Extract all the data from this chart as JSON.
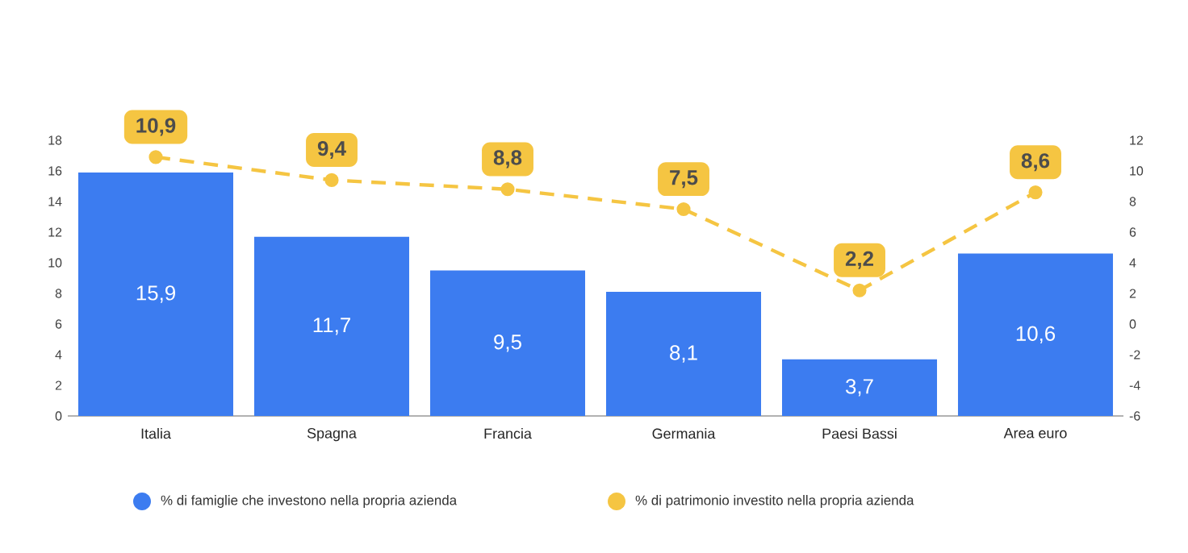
{
  "chart_data": {
    "type": "bar",
    "categories": [
      "Italia",
      "Spagna",
      "Francia",
      "Germania",
      "Paesi Bassi",
      "Area euro"
    ],
    "series": [
      {
        "name": "% di famiglie che investono nella propria azienda",
        "color": "#3c7cf0",
        "values": [
          15.9,
          11.7,
          9.5,
          8.1,
          3.7,
          10.6
        ],
        "value_labels": [
          "15,9",
          "11,7",
          "9,5",
          "8,1",
          "3,7",
          "10,6"
        ]
      },
      {
        "name": "% di patrimonio investito nella propria azienda",
        "type": "line",
        "axis": "y2",
        "marker": "circle",
        "line_style": "dashed",
        "color": "#f5c542",
        "values": [
          10.9,
          9.4,
          8.8,
          7.5,
          2.2,
          8.6
        ],
        "value_labels": [
          "10,9",
          "9,4",
          "8,8",
          "7,5",
          "2,2",
          "8,6"
        ]
      }
    ],
    "ylim": [
      0,
      18
    ],
    "yticks": [
      0,
      2,
      4,
      6,
      8,
      10,
      12,
      14,
      16,
      18
    ],
    "y2lim": [
      -6,
      12
    ],
    "y2ticks": [
      -6,
      -4,
      -2,
      0,
      2,
      4,
      6,
      8,
      10,
      12
    ],
    "grid": false,
    "legend": "bottom"
  }
}
